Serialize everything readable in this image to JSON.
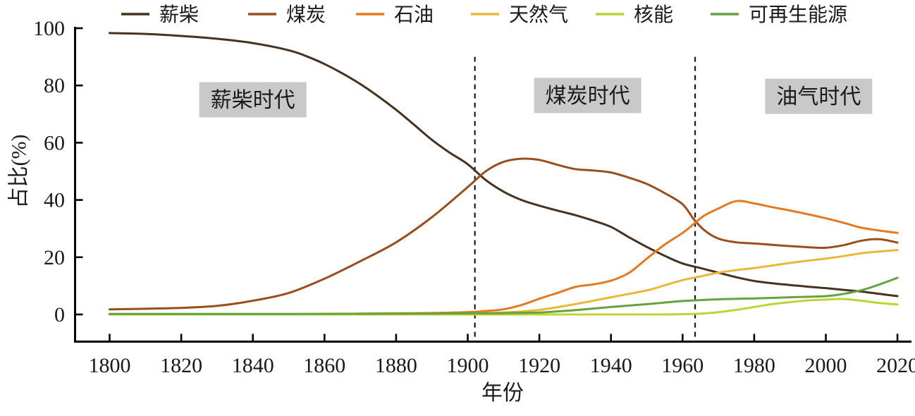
{
  "figure": {
    "background": "#ffffff",
    "text_color": "#1a1a1a",
    "axis_color": "#000000"
  },
  "legend": {
    "position": "top",
    "items": [
      {
        "label": "薪柴",
        "color": "#45321f"
      },
      {
        "label": "煤炭",
        "color": "#9a4e1e"
      },
      {
        "label": "石油",
        "color": "#e7781f"
      },
      {
        "label": "天然气",
        "color": "#eab838"
      },
      {
        "label": "核能",
        "color": "#bcd435"
      },
      {
        "label": "可再生能源",
        "color": "#66a23d"
      }
    ]
  },
  "chart_data": {
    "type": "line",
    "title": "",
    "xlabel": "年份",
    "ylabel": "占比(%)",
    "xlim": [
      1791,
      2024
    ],
    "ylim": [
      -11,
      100
    ],
    "x_ticks": [
      1800,
      1820,
      1840,
      1860,
      1880,
      1900,
      1920,
      1940,
      1960,
      1980,
      2000,
      2020
    ],
    "y_ticks": [
      0,
      20,
      40,
      60,
      80,
      100
    ],
    "grid": false,
    "legend_position": "top",
    "series": [
      {
        "name": "薪柴",
        "color": "#45321f",
        "points": [
          [
            1800,
            98.3
          ],
          [
            1810,
            98.0
          ],
          [
            1820,
            97.3
          ],
          [
            1830,
            96.3
          ],
          [
            1840,
            94.8
          ],
          [
            1850,
            92.3
          ],
          [
            1855,
            90.2
          ],
          [
            1860,
            87.5
          ],
          [
            1865,
            84.2
          ],
          [
            1870,
            80.5
          ],
          [
            1875,
            76.2
          ],
          [
            1880,
            71.5
          ],
          [
            1885,
            66.3
          ],
          [
            1890,
            61.0
          ],
          [
            1895,
            56.5
          ],
          [
            1900,
            52.5
          ],
          [
            1905,
            47.0
          ],
          [
            1910,
            42.9
          ],
          [
            1915,
            40.0
          ],
          [
            1920,
            38.0
          ],
          [
            1925,
            36.3
          ],
          [
            1930,
            34.7
          ],
          [
            1935,
            32.8
          ],
          [
            1940,
            30.6
          ],
          [
            1945,
            27.0
          ],
          [
            1950,
            23.6
          ],
          [
            1955,
            20.5
          ],
          [
            1960,
            17.8
          ],
          [
            1965,
            16.2
          ],
          [
            1970,
            14.6
          ],
          [
            1975,
            13.0
          ],
          [
            1980,
            11.7
          ],
          [
            1985,
            10.9
          ],
          [
            1990,
            10.3
          ],
          [
            1995,
            9.7
          ],
          [
            2000,
            9.2
          ],
          [
            2005,
            8.6
          ],
          [
            2010,
            8.0
          ],
          [
            2015,
            7.2
          ],
          [
            2020,
            6.4
          ]
        ]
      },
      {
        "name": "煤炭",
        "color": "#9a4e1e",
        "points": [
          [
            1800,
            1.8
          ],
          [
            1810,
            2.0
          ],
          [
            1820,
            2.3
          ],
          [
            1830,
            3.0
          ],
          [
            1840,
            4.8
          ],
          [
            1850,
            7.5
          ],
          [
            1860,
            12.5
          ],
          [
            1870,
            18.6
          ],
          [
            1880,
            25.2
          ],
          [
            1890,
            34.0
          ],
          [
            1900,
            44.5
          ],
          [
            1905,
            50.0
          ],
          [
            1910,
            53.3
          ],
          [
            1915,
            54.4
          ],
          [
            1920,
            54.0
          ],
          [
            1925,
            52.3
          ],
          [
            1930,
            50.8
          ],
          [
            1935,
            50.3
          ],
          [
            1940,
            49.6
          ],
          [
            1945,
            47.8
          ],
          [
            1950,
            45.6
          ],
          [
            1955,
            42.4
          ],
          [
            1960,
            38.5
          ],
          [
            1963,
            33.5
          ],
          [
            1966,
            29.5
          ],
          [
            1970,
            26.5
          ],
          [
            1975,
            25.2
          ],
          [
            1980,
            24.8
          ],
          [
            1985,
            24.3
          ],
          [
            1990,
            23.9
          ],
          [
            1995,
            23.5
          ],
          [
            2000,
            23.3
          ],
          [
            2005,
            24.2
          ],
          [
            2010,
            25.8
          ],
          [
            2015,
            26.3
          ],
          [
            2020,
            25.1
          ]
        ]
      },
      {
        "name": "石油",
        "color": "#e7781f",
        "points": [
          [
            1800,
            0.0
          ],
          [
            1850,
            0.1
          ],
          [
            1860,
            0.2
          ],
          [
            1870,
            0.3
          ],
          [
            1880,
            0.4
          ],
          [
            1890,
            0.5
          ],
          [
            1900,
            0.8
          ],
          [
            1905,
            1.2
          ],
          [
            1910,
            1.8
          ],
          [
            1915,
            3.3
          ],
          [
            1920,
            5.5
          ],
          [
            1925,
            7.5
          ],
          [
            1930,
            9.6
          ],
          [
            1935,
            10.5
          ],
          [
            1940,
            11.8
          ],
          [
            1945,
            14.5
          ],
          [
            1950,
            19.5
          ],
          [
            1955,
            24.4
          ],
          [
            1960,
            28.5
          ],
          [
            1963,
            31.5
          ],
          [
            1966,
            34.5
          ],
          [
            1970,
            37.0
          ],
          [
            1975,
            39.6
          ],
          [
            1980,
            38.8
          ],
          [
            1985,
            37.5
          ],
          [
            1990,
            36.3
          ],
          [
            1995,
            35.0
          ],
          [
            2000,
            33.6
          ],
          [
            2005,
            32.0
          ],
          [
            2010,
            30.3
          ],
          [
            2015,
            29.3
          ],
          [
            2020,
            28.5
          ]
        ]
      },
      {
        "name": "天然气",
        "color": "#eab838",
        "points": [
          [
            1800,
            0.0
          ],
          [
            1890,
            0.1
          ],
          [
            1900,
            0.3
          ],
          [
            1910,
            0.7
          ],
          [
            1920,
            1.6
          ],
          [
            1930,
            3.6
          ],
          [
            1940,
            6.0
          ],
          [
            1950,
            8.4
          ],
          [
            1955,
            10.2
          ],
          [
            1960,
            12.0
          ],
          [
            1965,
            13.3
          ],
          [
            1970,
            14.6
          ],
          [
            1975,
            15.5
          ],
          [
            1980,
            16.2
          ],
          [
            1985,
            17.1
          ],
          [
            1990,
            18.0
          ],
          [
            1995,
            18.8
          ],
          [
            2000,
            19.5
          ],
          [
            2005,
            20.4
          ],
          [
            2010,
            21.4
          ],
          [
            2015,
            22.0
          ],
          [
            2020,
            22.5
          ]
        ]
      },
      {
        "name": "核能",
        "color": "#bcd435",
        "points": [
          [
            1800,
            0.0
          ],
          [
            1900,
            0.0
          ],
          [
            1950,
            0.0
          ],
          [
            1960,
            0.1
          ],
          [
            1965,
            0.3
          ],
          [
            1970,
            0.8
          ],
          [
            1975,
            1.6
          ],
          [
            1980,
            2.6
          ],
          [
            1985,
            3.6
          ],
          [
            1990,
            4.3
          ],
          [
            1995,
            4.9
          ],
          [
            2000,
            5.2
          ],
          [
            2005,
            5.4
          ],
          [
            2010,
            4.8
          ],
          [
            2015,
            4.0
          ],
          [
            2020,
            3.5
          ]
        ]
      },
      {
        "name": "可再生能源",
        "color": "#66a23d",
        "points": [
          [
            1800,
            0.2
          ],
          [
            1850,
            0.2
          ],
          [
            1900,
            0.4
          ],
          [
            1910,
            0.5
          ],
          [
            1920,
            0.7
          ],
          [
            1930,
            1.5
          ],
          [
            1940,
            2.6
          ],
          [
            1950,
            3.6
          ],
          [
            1960,
            4.7
          ],
          [
            1970,
            5.3
          ],
          [
            1980,
            5.6
          ],
          [
            1990,
            6.0
          ],
          [
            2000,
            6.4
          ],
          [
            2005,
            7.2
          ],
          [
            2010,
            8.5
          ],
          [
            2015,
            10.5
          ],
          [
            2020,
            12.8
          ]
        ]
      }
    ],
    "dividers": [
      {
        "year": 1902,
        "top_pct": 90
      },
      {
        "year": 1963.5,
        "top_pct": 90
      }
    ],
    "annotations": [
      {
        "label": "薪柴时代",
        "year": 1840,
        "pct": 75,
        "bg": "#c9c9c9"
      },
      {
        "label": "煤炭时代",
        "year": 1933.5,
        "pct": 76.5,
        "bg": "#c9c9c9"
      },
      {
        "label": "油气时代",
        "year": 1998,
        "pct": 76.2,
        "bg": "#c9c9c9"
      }
    ]
  }
}
